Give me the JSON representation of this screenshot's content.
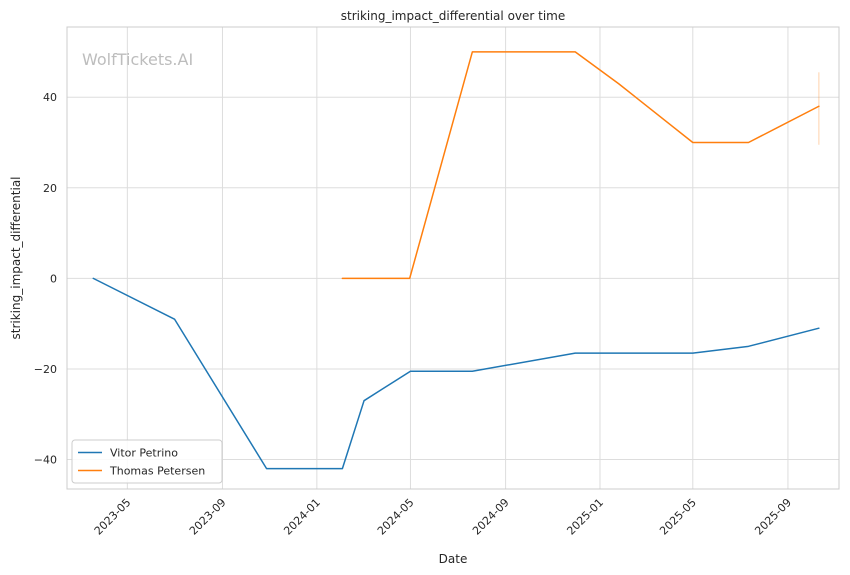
{
  "chart_data": {
    "type": "line",
    "title": "striking_impact_differential over time",
    "xlabel": "Date",
    "ylabel": "striking_impact_differential",
    "watermark": "WolfTickets.AI",
    "x_tick_labels": [
      "2023-05",
      "2023-09",
      "2024-01",
      "2024-05",
      "2024-09",
      "2025-01",
      "2025-05",
      "2025-09"
    ],
    "x_tick_dates": [
      "2023-05-01",
      "2023-09-01",
      "2024-01-01",
      "2024-05-01",
      "2024-09-01",
      "2025-01-01",
      "2025-05-01",
      "2025-09-01"
    ],
    "y_ticks": [
      40,
      20,
      0,
      -20,
      -40
    ],
    "y_tick_labels": [
      "40",
      "20",
      "0",
      "−20",
      "−40"
    ],
    "xlim": [
      "2023-02-12",
      "2025-11-06"
    ],
    "ylim": [
      -46.5,
      55.5
    ],
    "grid": true,
    "legend_position": "lower-left",
    "series": [
      {
        "name": "Vitor Petrino",
        "color": "#1f77b4",
        "x": [
          "2023-03-18",
          "2023-07-01",
          "2023-10-28",
          "2024-02-03",
          "2024-03-02",
          "2024-05-01",
          "2024-07-20",
          "2024-11-30",
          "2025-05-01",
          "2025-07-12",
          "2025-10-11"
        ],
        "y": [
          0,
          -9,
          -42,
          -42,
          -27,
          -20.5,
          -20.5,
          -16.5,
          -16.5,
          -15,
          -11
        ]
      },
      {
        "name": "Thomas Petersen",
        "color": "#ff7f0e",
        "x": [
          "2024-02-03",
          "2024-04-30",
          "2024-07-20",
          "2024-11-30",
          "2025-01-25",
          "2025-05-01",
          "2025-07-12",
          "2025-10-11"
        ],
        "y": [
          0,
          0,
          50,
          50,
          43,
          30,
          30,
          38
        ]
      }
    ],
    "error_bar": {
      "series": "Thomas Petersen",
      "x": "2025-10-11",
      "y_low": 29.5,
      "y_high": 45.5
    }
  }
}
